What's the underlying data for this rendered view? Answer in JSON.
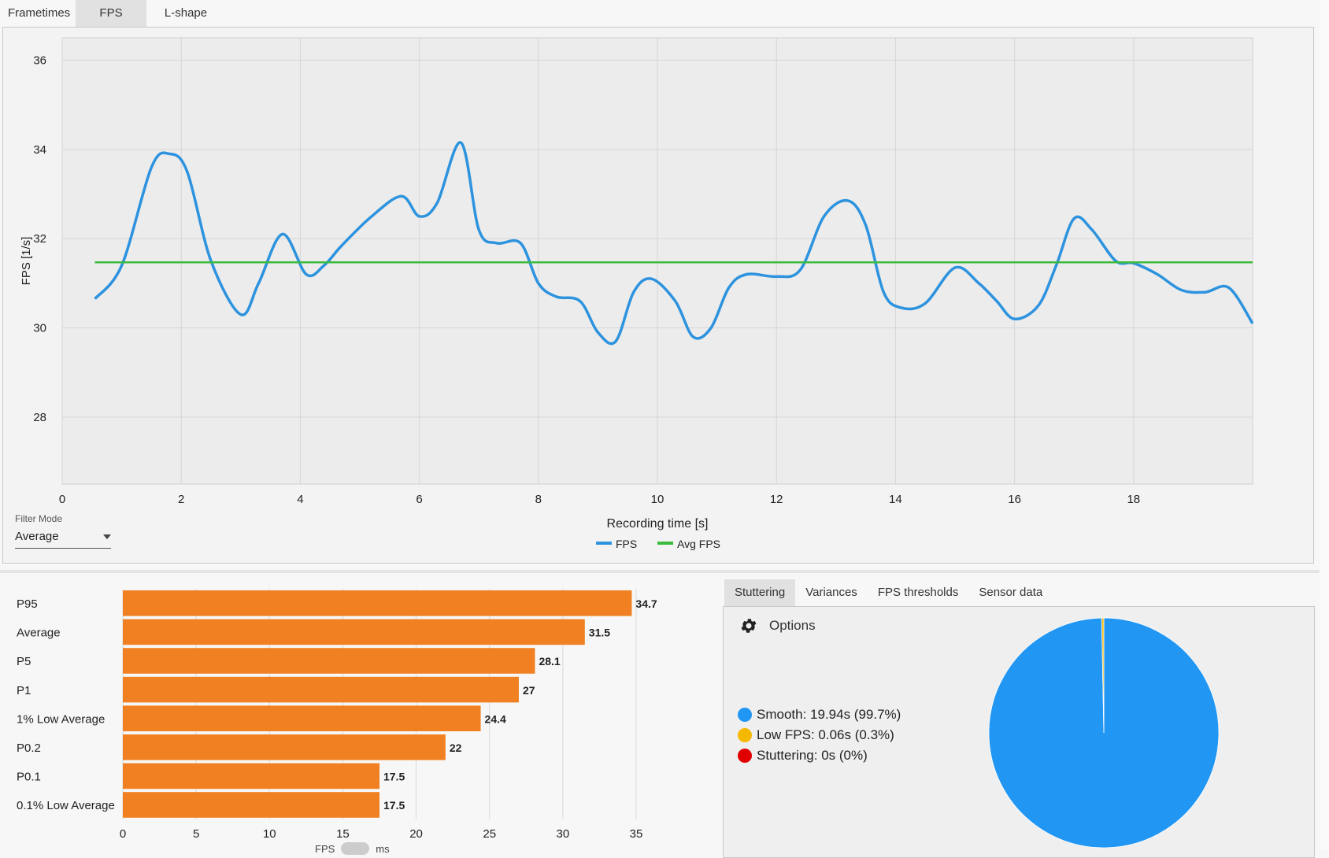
{
  "tabs": [
    "Frametimes",
    "FPS",
    "L-shape"
  ],
  "active_tab": "FPS",
  "filter": {
    "label": "Filter Mode",
    "value": "Average"
  },
  "bottom_tabs": [
    "Stuttering",
    "Variances",
    "FPS thresholds",
    "Sensor data"
  ],
  "active_bottom_tab": "Stuttering",
  "options_label": "Options",
  "toggle": {
    "left": "FPS",
    "right": "ms"
  },
  "colors": {
    "fps_line": "#2d93de",
    "avg_line": "#3dbb3d",
    "bar": "#f08022",
    "smooth": "#2196f3",
    "low_fps": "#f5b800",
    "stuttering": "#e00000"
  },
  "stutter_legend": [
    {
      "text": "Smooth:  19.94s (99.7%)",
      "color": "#2196f3"
    },
    {
      "text": "Low FPS:  0.06s (0.3%)",
      "color": "#f5b800"
    },
    {
      "text": "Stuttering:  0s (0%)",
      "color": "#e00000"
    }
  ],
  "chart_data": [
    {
      "type": "line",
      "xlabel": "Recording time [s]",
      "ylabel": "FPS [1/s]",
      "xlim": [
        0,
        20
      ],
      "ylim": [
        26.5,
        36.5
      ],
      "xticks": [
        0,
        2,
        4,
        6,
        8,
        10,
        12,
        14,
        16,
        18
      ],
      "yticks": [
        28,
        30,
        32,
        34,
        36
      ],
      "grid": true,
      "legend": "bottom-center",
      "series": [
        {
          "name": "FPS",
          "x": [
            0.55,
            1.0,
            1.5,
            1.8,
            2.1,
            2.5,
            3.0,
            3.3,
            3.7,
            4.1,
            4.4,
            4.7,
            5.2,
            5.7,
            6.0,
            6.3,
            6.7,
            7.0,
            7.3,
            7.7,
            8.0,
            8.3,
            8.7,
            9.0,
            9.3,
            9.6,
            9.9,
            10.3,
            10.6,
            10.9,
            11.2,
            11.5,
            12.0,
            12.4,
            12.8,
            13.2,
            13.5,
            13.8,
            14.1,
            14.5,
            15.0,
            15.4,
            15.7,
            16.0,
            16.4,
            16.7,
            17.0,
            17.3,
            17.7,
            18.0,
            18.4,
            18.8,
            19.2,
            19.6,
            20.0
          ],
          "values": [
            30.65,
            31.4,
            33.6,
            33.9,
            33.5,
            31.5,
            30.3,
            31.0,
            32.1,
            31.2,
            31.4,
            31.85,
            32.5,
            32.95,
            32.5,
            32.8,
            34.15,
            32.2,
            31.9,
            31.9,
            31.0,
            30.7,
            30.6,
            29.9,
            29.7,
            30.8,
            31.1,
            30.6,
            29.8,
            30.0,
            30.9,
            31.2,
            31.15,
            31.3,
            32.5,
            32.85,
            32.3,
            30.8,
            30.45,
            30.55,
            31.35,
            31.0,
            30.6,
            30.2,
            30.5,
            31.4,
            32.45,
            32.2,
            31.5,
            31.45,
            31.2,
            30.85,
            30.8,
            30.9,
            30.1
          ]
        },
        {
          "name": "Avg FPS",
          "x": [
            0.55,
            20.0
          ],
          "values": [
            31.47,
            31.47
          ]
        }
      ]
    },
    {
      "type": "bar",
      "orientation": "horizontal",
      "categories": [
        "P95",
        "Average",
        "P5",
        "P1",
        "1% Low Average",
        "P0.2",
        "P0.1",
        "0.1% Low Average"
      ],
      "values": [
        34.7,
        31.5,
        28.1,
        27,
        24.4,
        22,
        17.5,
        17.5
      ],
      "xlim": [
        0,
        35
      ],
      "xticks": [
        0,
        5,
        10,
        15,
        20,
        25,
        30,
        35
      ],
      "grid": true
    },
    {
      "type": "pie",
      "labels": [
        "Smooth",
        "Low FPS",
        "Stuttering"
      ],
      "values": [
        99.7,
        0.3,
        0
      ]
    }
  ]
}
